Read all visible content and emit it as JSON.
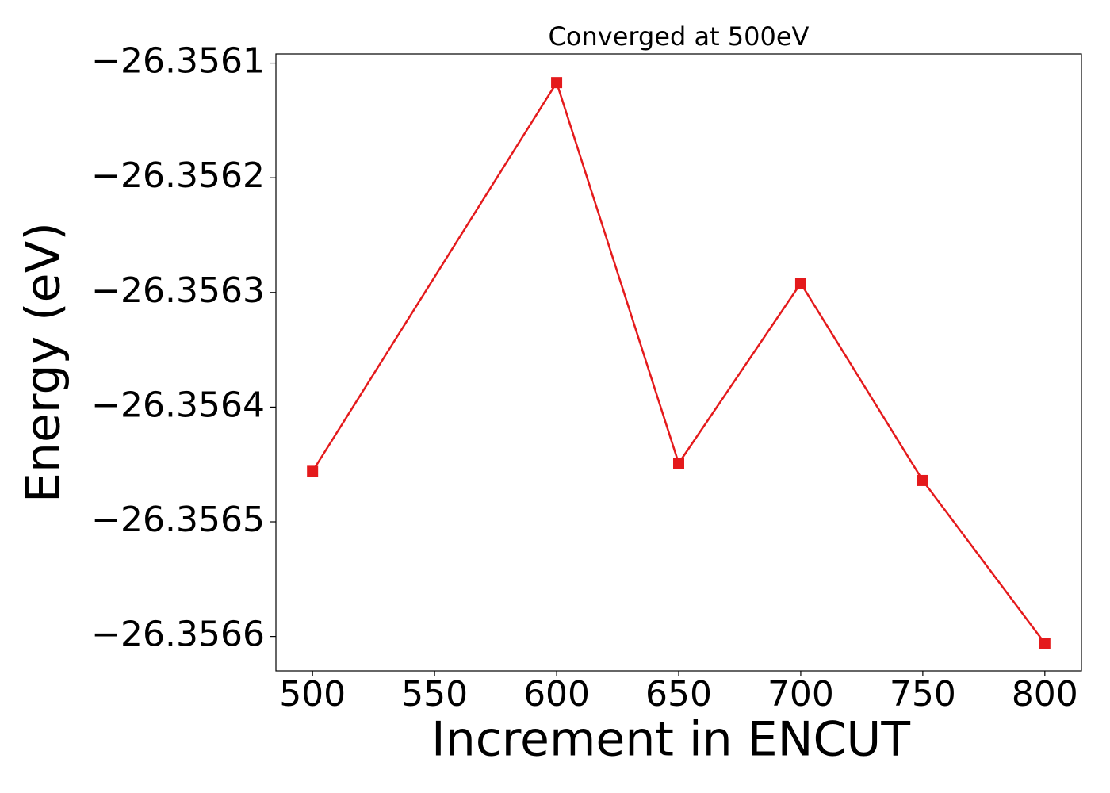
{
  "chart_data": {
    "type": "line",
    "title": "Converged at 500eV",
    "x_label": "Increment in ENCUT",
    "y_label": "Energy (eV)",
    "x": [
      500,
      600,
      650,
      700,
      750,
      800
    ],
    "series": [
      {
        "color": "#e41a1c",
        "marker": "square",
        "values": [
          -26.356456,
          -26.356117,
          -26.356449,
          -26.356292,
          -26.356464,
          -26.356606
        ]
      }
    ],
    "xlim": [
      485,
      815
    ],
    "xticks": [
      500,
      550,
      600,
      650,
      700,
      750,
      800
    ],
    "ylim": [
      -26.35663,
      -26.356092
    ],
    "yticks": [
      {
        "value": -26.3566,
        "label": "−26.3566"
      },
      {
        "value": -26.3565,
        "label": "−26.3565"
      },
      {
        "value": -26.3564,
        "label": "−26.3564"
      },
      {
        "value": -26.3563,
        "label": "−26.3563"
      },
      {
        "value": -26.3562,
        "label": "−26.3562"
      },
      {
        "value": -26.3561,
        "label": "−26.3561"
      }
    ],
    "grid": false
  }
}
